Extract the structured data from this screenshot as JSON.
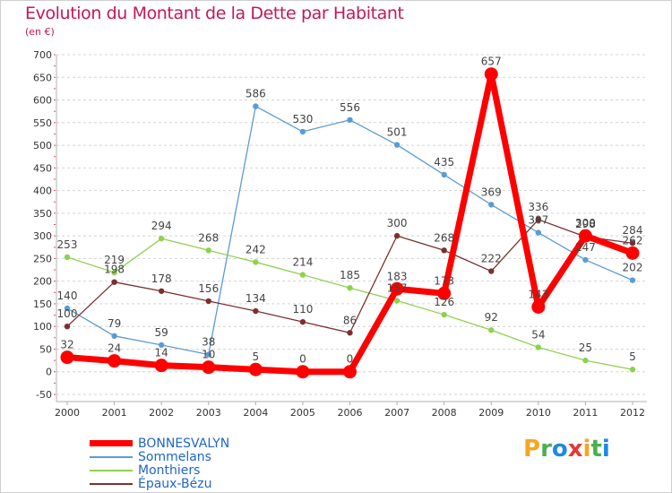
{
  "title": "Evolution du Montant de la Dette par Habitant",
  "subtitle": "(en €)",
  "logo": [
    "P",
    "r",
    "o",
    "x",
    "i",
    "t",
    "i"
  ],
  "logo_colors": [
    "#f5a623",
    "#4caf50",
    "#1e88e5",
    "#e53935",
    "#f5a623",
    "#4caf50",
    "#1e88e5"
  ],
  "chart_data": {
    "type": "line",
    "title": "Evolution du Montant de la Dette par Habitant",
    "ylabel": "(en €)",
    "xlabel": "",
    "x": [
      "2000",
      "2001",
      "2002",
      "2003",
      "2004",
      "2005",
      "2006",
      "2007",
      "2008",
      "2009",
      "2010",
      "2011",
      "2012"
    ],
    "ylim": [
      -50,
      700
    ],
    "yticks": [
      "-50",
      "0",
      "50",
      "100",
      "150",
      "200",
      "250",
      "300",
      "350",
      "400",
      "450",
      "500",
      "550",
      "600",
      "650",
      "700"
    ],
    "grid": "horizontal dashed",
    "legend": "bottom-left",
    "series": [
      {
        "name": "Sommelans",
        "color": "#5b9bd5",
        "values": [
          140,
          79,
          59,
          38,
          586,
          530,
          556,
          501,
          435,
          369,
          307,
          247,
          202
        ],
        "labels": [
          "140",
          "79",
          "59",
          "38",
          "586",
          "530",
          "556",
          "501",
          "435",
          "369",
          "307",
          "247",
          "202"
        ]
      },
      {
        "name": "Monthiers",
        "color": "#8fd14f",
        "values": [
          253,
          219,
          294,
          268,
          242,
          214,
          185,
          157,
          126,
          92,
          54,
          25,
          5
        ],
        "labels": [
          "253",
          "219",
          "294",
          "268",
          "242",
          "214",
          "185",
          "157",
          "126",
          "92",
          "54",
          "25",
          "5"
        ]
      },
      {
        "name": "Épaux-Bézu",
        "color": "#7b2f2f",
        "values": [
          100,
          198,
          178,
          156,
          134,
          110,
          86,
          300,
          268,
          222,
          336,
          298,
          284
        ],
        "labels": [
          "100",
          "198",
          "178",
          "156",
          "134",
          "110",
          "86",
          "300",
          "268",
          "222",
          "336",
          "298",
          "284"
        ]
      },
      {
        "name": "BONNESVALYN",
        "color": "#ff0000",
        "values": [
          32,
          24,
          14,
          10,
          5,
          0,
          0,
          183,
          173,
          657,
          143,
          300,
          262
        ],
        "labels": [
          "32",
          "24",
          "14",
          "10",
          "5",
          "0",
          "0",
          "183",
          "173",
          "657",
          "143",
          "300",
          "262"
        ]
      }
    ],
    "legend_order": [
      "BONNESVALYN",
      "Sommelans",
      "Monthiers",
      "Épaux-Bézu"
    ]
  }
}
